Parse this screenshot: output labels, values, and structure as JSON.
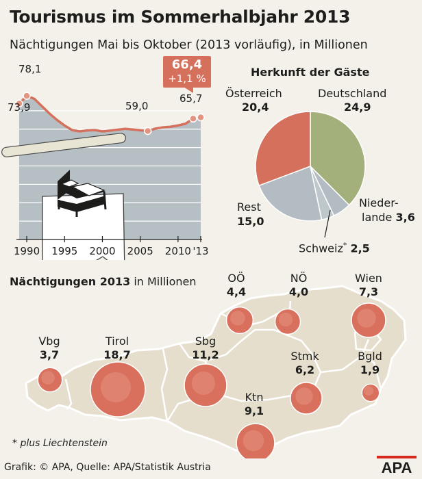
{
  "title": "Tourismus im Sommerhalbjahr 2013",
  "subtitle": "Nächtigungen Mai bis Oktober (2013 vorläufig), in Millionen",
  "chart_data": [
    {
      "type": "area",
      "xlabel": "",
      "ylabel": "",
      "x": [
        1989,
        1990,
        1991,
        1992,
        1993,
        1994,
        1995,
        1996,
        1997,
        1998,
        1999,
        2000,
        2001,
        2002,
        2003,
        2004,
        2005,
        2006,
        2007,
        2008,
        2009,
        2010,
        2011,
        2012,
        2013
      ],
      "values": [
        73.9,
        78.1,
        76.5,
        72.5,
        68.5,
        65.0,
        62.0,
        59.5,
        58.8,
        59.3,
        59.5,
        58.8,
        59.2,
        59.7,
        60.2,
        59.8,
        59.4,
        59.0,
        60.3,
        61.0,
        61.3,
        62.0,
        63.0,
        65.7,
        66.4
      ],
      "ylim": [
        0,
        80
      ],
      "xticks": [
        "1990",
        "1995",
        "2000",
        "2005",
        "2010",
        "'13"
      ],
      "xtick_values": [
        1990,
        1995,
        2000,
        2005,
        2010,
        2013
      ],
      "labeled_points": [
        {
          "x": 1989,
          "value": 73.9,
          "label": "73,9"
        },
        {
          "x": 1990,
          "value": 78.1,
          "label": "78,1"
        },
        {
          "x": 2006,
          "value": 59.0,
          "label": "59,0"
        },
        {
          "x": 2012,
          "value": 65.7,
          "label": "65,7"
        }
      ],
      "highlight": {
        "x": 2013,
        "value": 66.4,
        "label": "66,4",
        "change": "+1,1 %"
      }
    },
    {
      "type": "pie",
      "title": "Herkunft der Gäste",
      "categories": [
        "Deutschland",
        "Niederlande",
        "Schweiz*",
        "Rest",
        "Österreich"
      ],
      "values": [
        24.9,
        3.6,
        2.5,
        15.0,
        20.4
      ],
      "value_labels": [
        "24,9",
        "3,6",
        "2,5",
        "15,0",
        "20,4"
      ],
      "colors": [
        "#a4b07c",
        "#b3bcc2",
        "#bec7cc",
        "#b3bcc2",
        "#d5705c"
      ]
    },
    {
      "type": "bubble-map",
      "title": "Nächtigungen 2013",
      "title_suffix": "in Millionen",
      "categories": [
        "Vbg",
        "Tirol",
        "Sbg",
        "OÖ",
        "NÖ",
        "Wien",
        "Stmk",
        "Ktn",
        "Bgld"
      ],
      "values": [
        3.7,
        18.7,
        11.2,
        4.4,
        4.0,
        7.3,
        6.2,
        9.1,
        1.9
      ],
      "value_labels": [
        "3,7",
        "18,7",
        "11,2",
        "4,4",
        "4,0",
        "7,3",
        "6,2",
        "9,1",
        "1,9"
      ]
    }
  ],
  "colors": {
    "background": "#f3f1ea",
    "area_fill": "#b6bfc4",
    "line": "#d5705c",
    "marker": "#e29480",
    "bubble": "#d9705e",
    "map": "#e6decc",
    "map_border": "#ffffff"
  },
  "pie_names": {
    "oesterreich": "Österreich",
    "deutschland": "Deutschland",
    "niederlande_1": "Nieder-",
    "niederlande_2": "lande",
    "schweiz": "Schweiz",
    "schweiz_star": "*",
    "rest": "Rest"
  },
  "illustration": "bed-icon",
  "footnote": "* plus Liechtenstein",
  "credit": "Grafik: © APA, Quelle: APA/Statistik Austria",
  "logo": "APA"
}
